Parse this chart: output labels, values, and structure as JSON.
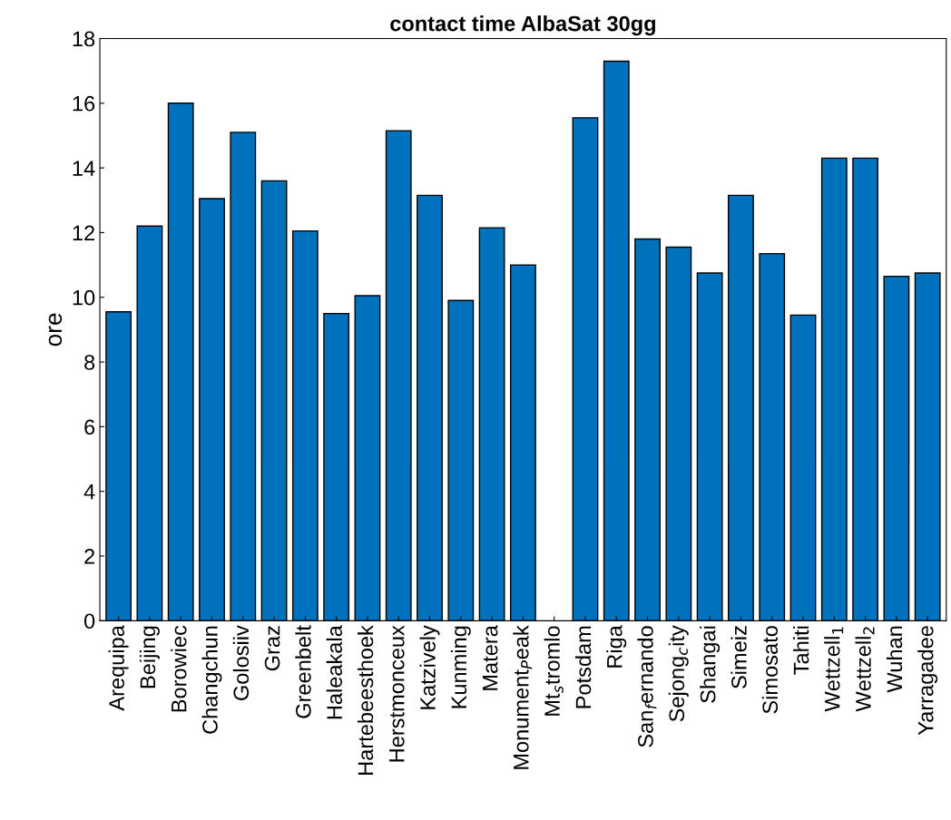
{
  "chart_data": {
    "type": "bar",
    "title": "contact time AlbaSat 30gg",
    "ylabel": "ore",
    "categories": [
      "Arequipa",
      "Beijing",
      "Borowiec",
      "Changchun",
      "Golosiiv",
      "Graz",
      "Greenbelt",
      "Haleakala",
      "Hartebeesthoek",
      "Herstmonceux",
      "Katzively",
      "Kunming",
      "Matera",
      "Monument$_{P}$eak",
      "Mt$_{s}$tromlo",
      "Potsdam",
      "Riga",
      "San$_{f}$ernando",
      "Sejong$_{c}$ity",
      "Shangai",
      "Simeiz",
      "Simosato",
      "Tahiti",
      "Wettzell$_{1}$",
      "Wettzell$_{2}$",
      "Wuhan",
      "Yarragadee"
    ],
    "values": [
      9.55,
      12.2,
      16.0,
      13.05,
      15.1,
      13.6,
      12.05,
      9.5,
      10.05,
      15.15,
      13.15,
      9.9,
      12.15,
      11.0,
      null,
      15.55,
      17.3,
      11.8,
      11.55,
      10.75,
      13.15,
      11.35,
      9.45,
      14.3,
      14.3,
      10.65,
      10.75
    ],
    "color": "#0072bd",
    "ylim": [
      0,
      18
    ],
    "yticks": [
      0,
      2,
      4,
      6,
      8,
      10,
      12,
      14,
      16,
      18
    ],
    "grid": false,
    "legend": false
  }
}
